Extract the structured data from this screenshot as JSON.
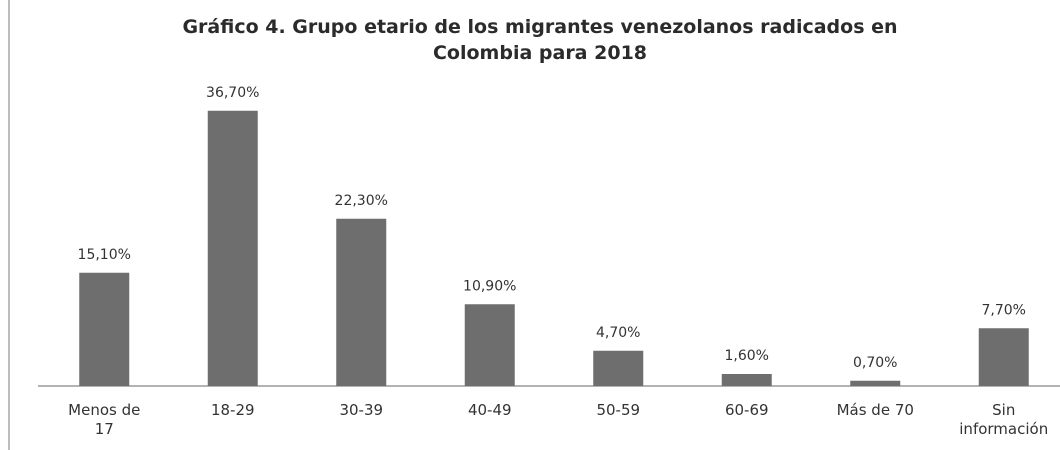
{
  "chart_data": {
    "type": "bar",
    "title_lines": [
      "Gráfico 4. Grupo etario de los migrantes venezolanos radicados en",
      "Colombia para 2018"
    ],
    "categories": [
      [
        "Menos de",
        "17"
      ],
      [
        "18-29"
      ],
      [
        "30-39"
      ],
      [
        "40-49"
      ],
      [
        "50-59"
      ],
      [
        "60-69"
      ],
      [
        "Más de 70"
      ],
      [
        "Sin",
        "información"
      ]
    ],
    "values": [
      15.1,
      36.7,
      22.3,
      10.9,
      4.7,
      1.6,
      0.7,
      7.7
    ],
    "value_labels": [
      "15,10%",
      "36,70%",
      "22,30%",
      "10,90%",
      "4,70%",
      "1,60%",
      "0,70%",
      "7,70%"
    ],
    "ylim": [
      0,
      40
    ],
    "bar_color": "#6e6e6e",
    "axis_color": "#9a9a9a",
    "grid": false,
    "legend": "none"
  }
}
